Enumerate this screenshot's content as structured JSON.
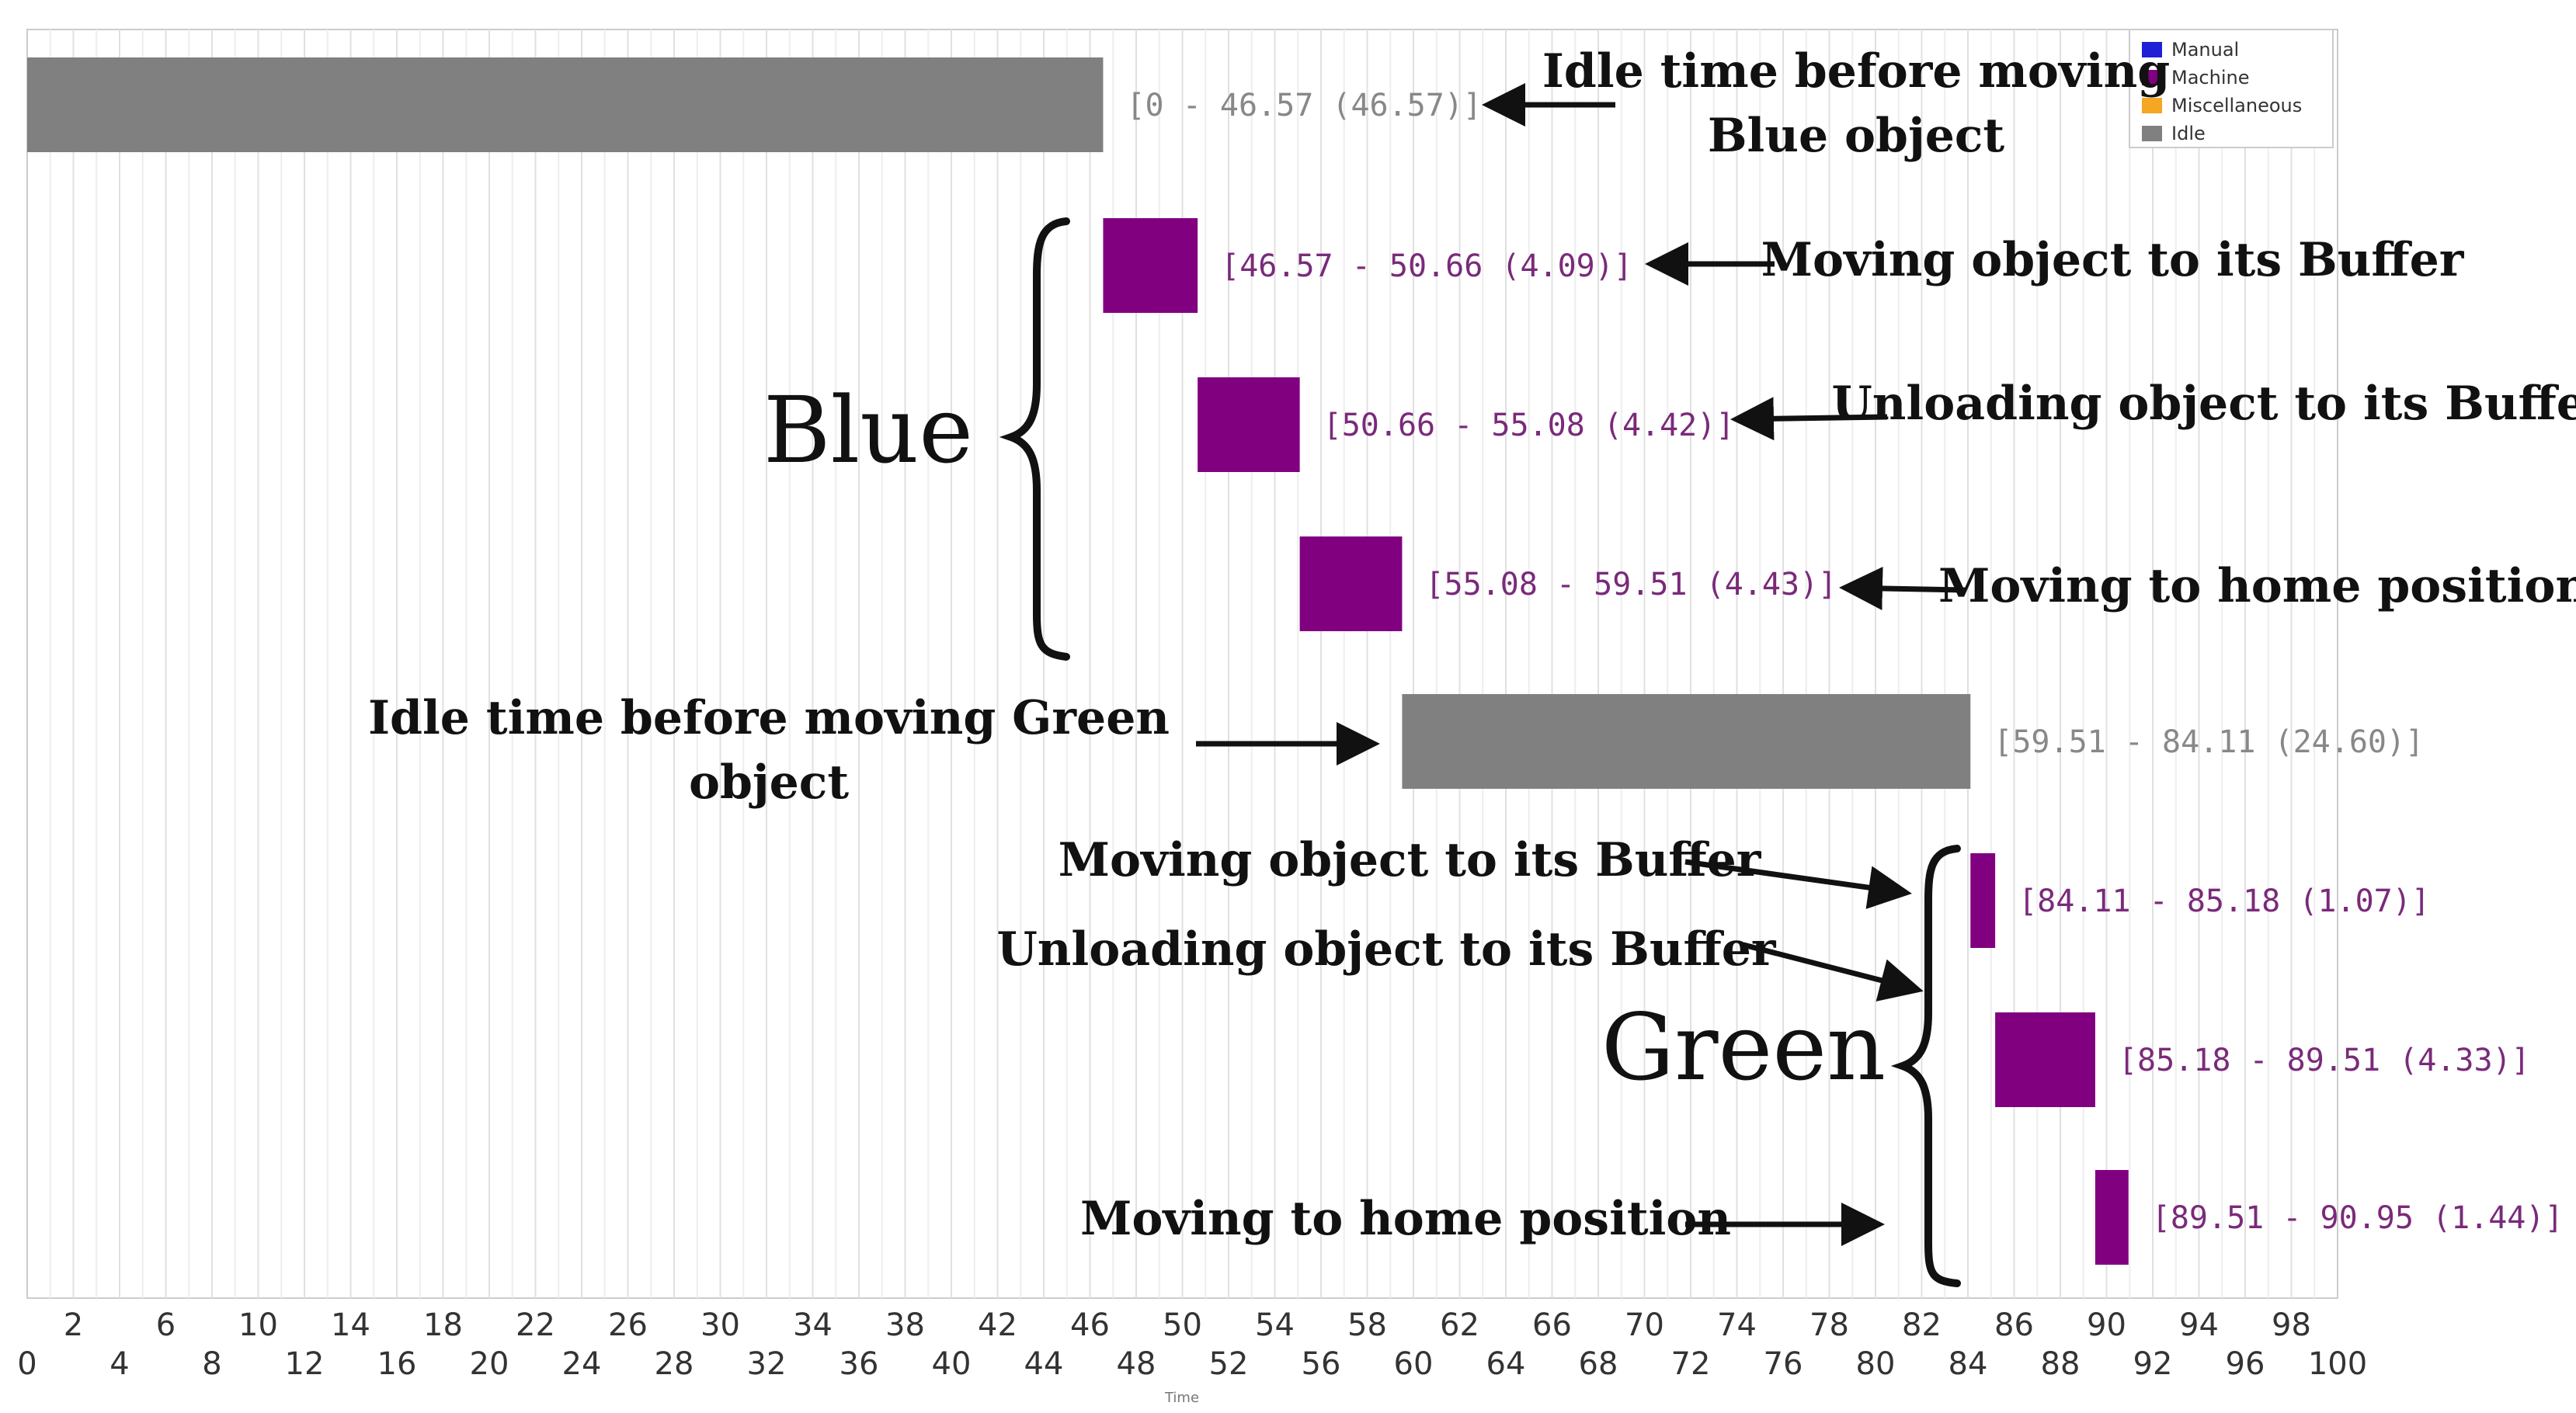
{
  "chart_data": {
    "type": "gantt",
    "x": {
      "label": "Time",
      "lim": [
        0,
        100
      ],
      "ticks_lower": [
        0,
        4,
        8,
        12,
        16,
        20,
        24,
        28,
        32,
        36,
        40,
        44,
        48,
        52,
        56,
        60,
        64,
        68,
        72,
        76,
        80,
        84,
        88,
        92,
        96,
        100
      ],
      "ticks_upper": [
        2,
        6,
        10,
        14,
        18,
        22,
        26,
        30,
        34,
        38,
        42,
        46,
        50,
        54,
        58,
        62,
        66,
        70,
        74,
        78,
        82,
        86,
        90,
        94,
        98
      ]
    },
    "grid": true,
    "legend": {
      "position": "top-right",
      "entries": [
        {
          "name": "Manual",
          "color": "#1f1fd6"
        },
        {
          "name": "Machine",
          "color": "#800080"
        },
        {
          "name": "Miscellaneous",
          "color": "#f5a623"
        },
        {
          "name": "Idle",
          "color": "#808080"
        }
      ]
    },
    "bars": [
      {
        "start": 0,
        "end": 46.57,
        "category": "Idle",
        "label": "[0 - 46.57 (46.57)]"
      },
      {
        "start": 46.57,
        "end": 50.66,
        "category": "Machine",
        "label": "[46.57 - 50.66 (4.09)]"
      },
      {
        "start": 50.66,
        "end": 55.08,
        "category": "Machine",
        "label": "[50.66 - 55.08 (4.42)]"
      },
      {
        "start": 55.08,
        "end": 59.51,
        "category": "Machine",
        "label": "[55.08 - 59.51 (4.43)]"
      },
      {
        "start": 59.51,
        "end": 84.11,
        "category": "Idle",
        "label": "[59.51 - 84.11 (24.60)]"
      },
      {
        "start": 84.11,
        "end": 85.18,
        "category": "Machine",
        "label": "[84.11 - 85.18 (1.07)]"
      },
      {
        "start": 85.18,
        "end": 89.51,
        "category": "Machine",
        "label": "[85.18 - 89.51 (4.33)]"
      },
      {
        "start": 89.51,
        "end": 90.95,
        "category": "Machine",
        "label": "[89.51 - 90.95 (1.44)]"
      }
    ],
    "annotations": [
      {
        "text": "Idle time before moving",
        "text2": "Blue object"
      },
      {
        "text": "Moving object to its Buffer"
      },
      {
        "text": "Unloading object to its Buffer"
      },
      {
        "text": "Moving to home position"
      },
      {
        "text": "Idle time before moving Green",
        "text2": "object"
      },
      {
        "text": "Moving object to its Buffer"
      },
      {
        "text": "Unloading object to its Buffer"
      },
      {
        "text": "Moving to home position"
      }
    ],
    "groups": [
      {
        "name": "Blue"
      },
      {
        "name": "Green"
      }
    ]
  }
}
